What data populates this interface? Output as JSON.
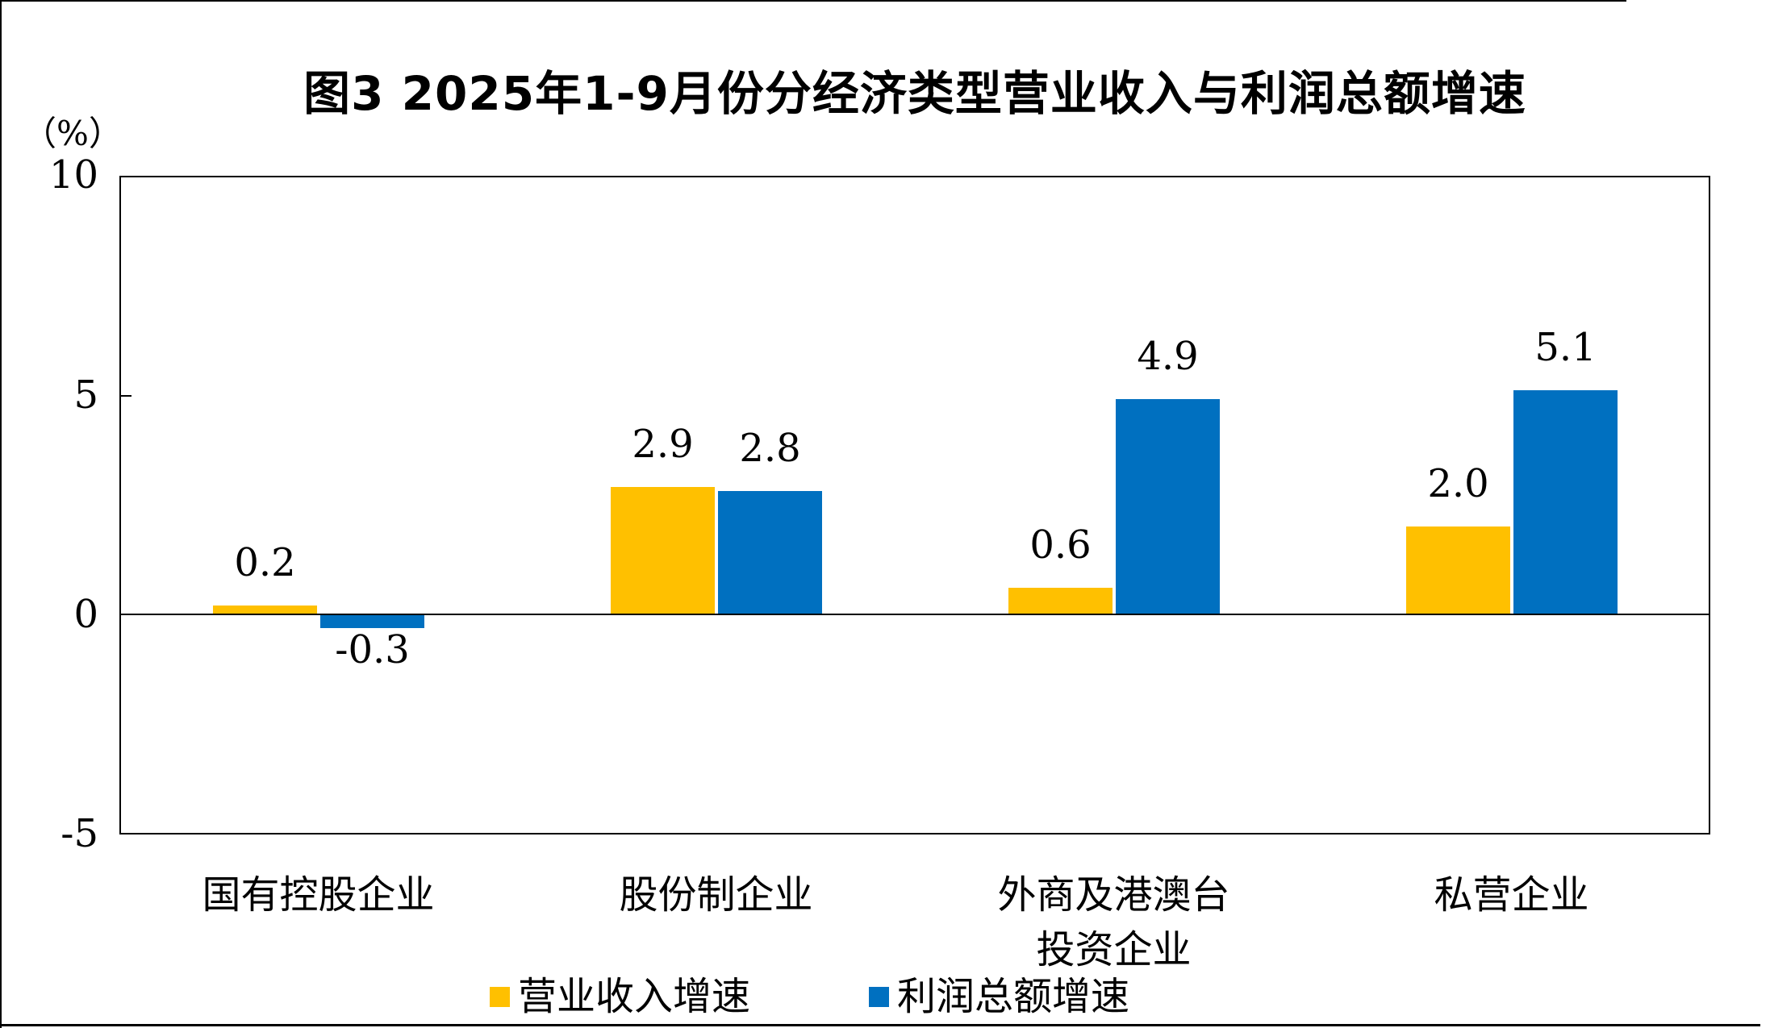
{
  "title": "图3  2025年1-9月份分经济类型营业收入与利润总额增速",
  "y_axis": {
    "unit_label": "（%）",
    "tick_values": [
      10,
      5,
      0,
      -5
    ]
  },
  "chart_data": {
    "type": "bar",
    "title": "图3  2025年1-9月份分经济类型营业收入与利润总额增速",
    "categories": [
      "国有控股企业",
      "股份制企业",
      "外商及港澳台\n投资企业",
      "私营企业"
    ],
    "series": [
      {
        "name": "营业收入增速",
        "color": "#FFC000",
        "values": [
          0.2,
          2.9,
          0.6,
          2.0
        ]
      },
      {
        "name": "利润总额增速",
        "color": "#0070C0",
        "values": [
          -0.3,
          2.8,
          4.9,
          5.1
        ]
      }
    ],
    "data_labels": [
      "0.2",
      "-0.3",
      "2.9",
      "2.8",
      "0.6",
      "4.9",
      "2.0",
      "5.1"
    ],
    "ylabel": "（%）",
    "ylim": [
      -5,
      10
    ],
    "yticks": [
      10,
      5,
      0,
      -5
    ],
    "grid": false,
    "zero_baseline": true,
    "legend_position": "bottom",
    "bar_colors": {
      "revenue": "#FFC000",
      "profit": "#0070C0"
    },
    "axis_color": "#000000",
    "background_color": "#FFFFFF"
  },
  "legend": {
    "items": [
      {
        "label": "营业收入增速",
        "color": "#FFC000"
      },
      {
        "label": "利润总额增速",
        "color": "#0070C0"
      }
    ]
  }
}
